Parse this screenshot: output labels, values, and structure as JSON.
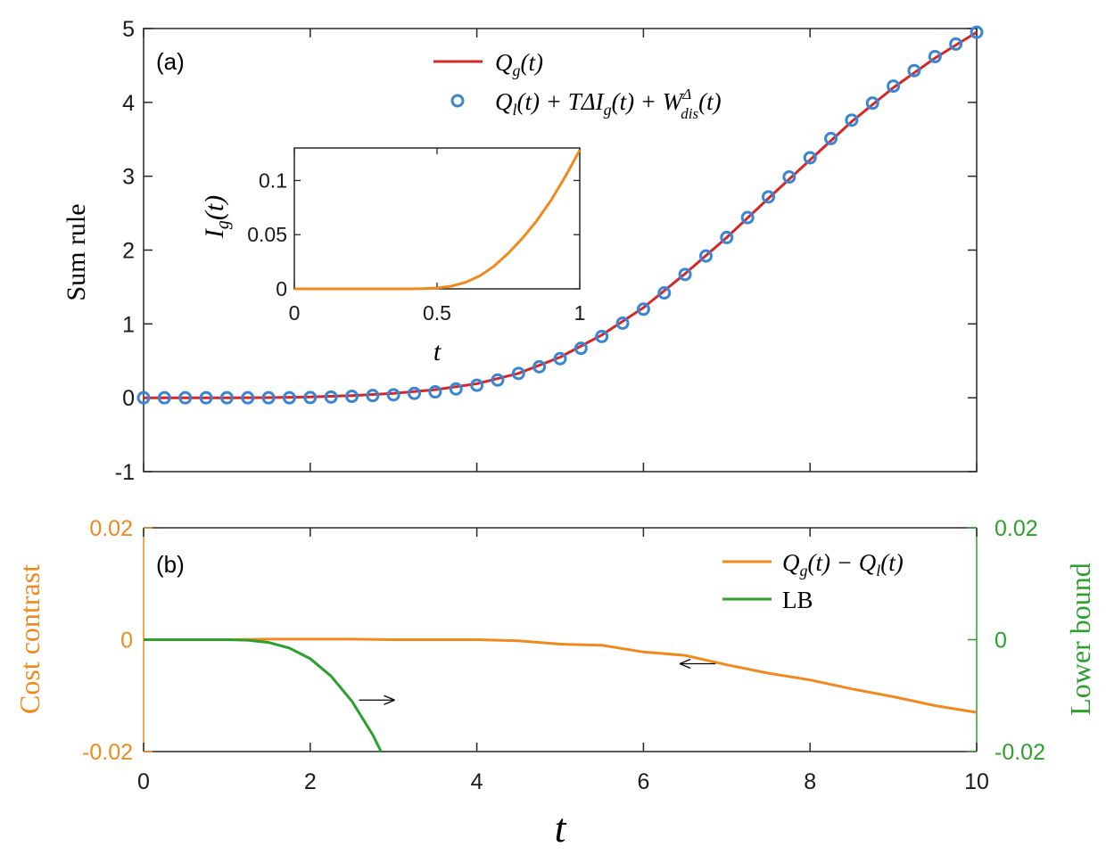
{
  "chart_data": [
    {
      "id": "panel_a",
      "type": "line",
      "panel_label": "(a)",
      "ylabel": "Sum rule",
      "xlim": [
        0,
        10
      ],
      "ylim": [
        -1,
        5
      ],
      "yticks": [
        -1,
        0,
        1,
        2,
        3,
        4,
        5
      ],
      "ytick_labels": [
        "-1",
        "0",
        "1",
        "2",
        "3",
        "4",
        "5"
      ],
      "legend_position": "top-center",
      "series": [
        {
          "name": "Q_g(t)",
          "legend_label": "Q",
          "legend_sub": "g",
          "legend_rest": "(t)",
          "style": "line",
          "color": "#d62728",
          "x": [
            0,
            0.5,
            1,
            1.5,
            2,
            2.5,
            3,
            3.5,
            4,
            4.5,
            5,
            5.5,
            6,
            6.5,
            7,
            7.5,
            8,
            8.5,
            9,
            9.5,
            10
          ],
          "y": [
            0,
            0,
            0,
            0.002,
            0.01,
            0.03,
            0.06,
            0.11,
            0.19,
            0.33,
            0.55,
            0.85,
            1.22,
            1.68,
            2.17,
            2.7,
            3.22,
            3.74,
            4.2,
            4.6,
            4.95
          ]
        },
        {
          "name": "Q_l(t) + TΔI_g(t) + W_dis^Δ(t)",
          "legend_label": "Q",
          "legend_sub": "l",
          "legend_rest": "(t) + TΔI",
          "legend_sub2": "g",
          "legend_rest2": "(t) + W",
          "legend_sup3": "Δ",
          "legend_sub3": "dis",
          "legend_rest3": "(t)",
          "style": "circle",
          "color": "#3b86d4",
          "x": [
            0,
            0.25,
            0.5,
            0.75,
            1,
            1.25,
            1.5,
            1.75,
            2,
            2.25,
            2.5,
            2.75,
            3,
            3.25,
            3.5,
            3.75,
            4,
            4.25,
            4.5,
            4.75,
            5,
            5.25,
            5.5,
            5.75,
            6,
            6.25,
            6.5,
            6.75,
            7,
            7.25,
            7.5,
            7.75,
            8,
            8.25,
            8.5,
            8.75,
            9,
            9.25,
            9.5,
            9.75,
            10
          ],
          "y": [
            0,
            0,
            0,
            0,
            0,
            0,
            0,
            0,
            0.003,
            0.01,
            0.02,
            0.03,
            0.04,
            0.06,
            0.08,
            0.12,
            0.17,
            0.24,
            0.33,
            0.42,
            0.53,
            0.67,
            0.83,
            1.01,
            1.2,
            1.42,
            1.67,
            1.92,
            2.17,
            2.44,
            2.72,
            2.99,
            3.25,
            3.51,
            3.76,
            3.99,
            4.22,
            4.43,
            4.62,
            4.79,
            4.95
          ]
        }
      ],
      "inset": {
        "type": "line",
        "xlabel": "t",
        "ylabel": "I_g(t)",
        "ylabel_main": "I",
        "ylabel_sub": "g",
        "ylabel_rest": "(t)",
        "xlim": [
          0,
          1
        ],
        "ylim": [
          0,
          0.13
        ],
        "xticks": [
          0,
          0.5,
          1
        ],
        "xtick_labels": [
          "0",
          "0.5",
          "1"
        ],
        "yticks": [
          0,
          0.05,
          0.1
        ],
        "ytick_labels": [
          "0",
          "0.05",
          "0.1"
        ],
        "color": "#f08a1e",
        "x": [
          0,
          0.1,
          0.2,
          0.3,
          0.4,
          0.45,
          0.5,
          0.55,
          0.6,
          0.65,
          0.7,
          0.75,
          0.8,
          0.85,
          0.9,
          0.95,
          1
        ],
        "y": [
          0,
          0,
          0,
          0,
          0,
          0.0002,
          0.0008,
          0.0025,
          0.006,
          0.012,
          0.021,
          0.033,
          0.047,
          0.063,
          0.082,
          0.104,
          0.128
        ]
      }
    },
    {
      "id": "panel_b",
      "type": "line",
      "panel_label": "(b)",
      "xlabel": "t",
      "ylabel": "Cost contrast",
      "ylabel_right": "Lower bound",
      "xlim": [
        0,
        10
      ],
      "xticks": [
        0,
        2,
        4,
        6,
        8,
        10
      ],
      "xtick_labels": [
        "0",
        "2",
        "4",
        "6",
        "8",
        "10"
      ],
      "ylim": [
        -0.02,
        0.02
      ],
      "yticks": [
        -0.02,
        0,
        0.02
      ],
      "ytick_labels": [
        "-0.02",
        "0",
        "0.02"
      ],
      "ylim_right": [
        -0.02,
        0.02
      ],
      "yticks_right": [
        -0.02,
        0,
        0.02
      ],
      "ytick_labels_right": [
        "-0.02",
        "0",
        "0.02"
      ],
      "axis_colors": {
        "left": "#f08a1e",
        "right": "#2ca02c"
      },
      "legend_position": "top-right",
      "series": [
        {
          "name": "Q_g(t) − Q_l(t)",
          "legend_label": "Q",
          "legend_sub": "g",
          "legend_rest": "(t) − Q",
          "legend_sub2": "l",
          "legend_rest2": "(t)",
          "axis": "left",
          "color": "#f08a1e",
          "x": [
            0,
            0.5,
            1,
            1.5,
            2,
            2.5,
            3,
            3.5,
            4,
            4.5,
            5,
            5.5,
            6,
            6.5,
            7,
            7.5,
            8,
            8.5,
            9,
            9.5,
            10
          ],
          "y": [
            0,
            0,
            0,
            0.0001,
            0.0001,
            0.0001,
            0,
            0,
            0,
            -0.0002,
            -0.0008,
            -0.001,
            -0.0022,
            -0.0028,
            -0.0045,
            -0.006,
            -0.0072,
            -0.0088,
            -0.0102,
            -0.0118,
            -0.013
          ]
        },
        {
          "name": "LB",
          "legend_label": "LB",
          "axis": "right",
          "color": "#2ca02c",
          "x": [
            0,
            0.5,
            1,
            1.25,
            1.5,
            1.75,
            2,
            2.25,
            2.5,
            2.75,
            2.85
          ],
          "y": [
            0,
            0,
            0,
            -0.0001,
            -0.0005,
            -0.0015,
            -0.0034,
            -0.0065,
            -0.011,
            -0.017,
            -0.02
          ]
        }
      ],
      "annotations": [
        {
          "type": "arrow",
          "direction": "right",
          "meaning": "LB uses right axis",
          "at": {
            "x": 2.8,
            "y": -0.0108
          }
        },
        {
          "type": "arrow",
          "direction": "left",
          "meaning": "cost contrast uses left axis",
          "at": {
            "x": 6.65,
            "y": -0.0043
          }
        }
      ]
    }
  ]
}
